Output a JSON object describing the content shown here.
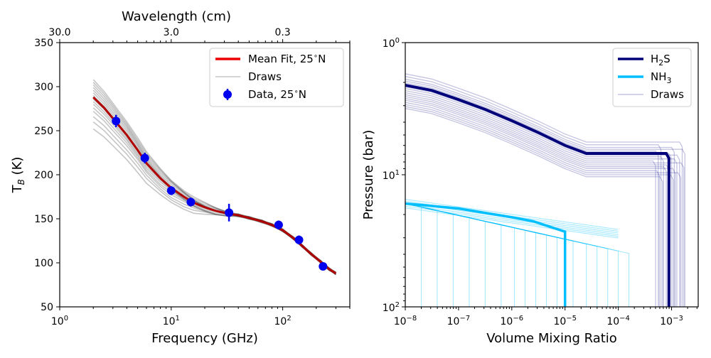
{
  "chart_data": [
    {
      "type": "line",
      "panel": "left",
      "x_scale": "log",
      "xlabel": "Frequency (GHz)",
      "ylabel_main": "T",
      "ylabel_sub": "B",
      "ylabel_unit": " (K)",
      "top_axis_label": "Wavelength (cm)",
      "xlim": [
        1,
        400
      ],
      "ylim": [
        50,
        350
      ],
      "x_tick_labels": [
        {
          "base": "10",
          "exp": "0",
          "value": 1
        },
        {
          "base": "10",
          "exp": "1",
          "value": 10
        },
        {
          "base": "10",
          "exp": "2",
          "value": 100
        }
      ],
      "y_ticks": [
        50,
        100,
        150,
        200,
        250,
        300,
        350
      ],
      "top_ticks": [
        {
          "label": "30.0",
          "freq": 1
        },
        {
          "label": "3.0",
          "freq": 10
        },
        {
          "label": "0.3",
          "freq": 100
        }
      ],
      "legend": [
        {
          "label": "Mean Fit, 25",
          "suffix": "N",
          "style": "line",
          "color": "#ee0000"
        },
        {
          "label": "Draws",
          "style": "line",
          "color": "#bbbbbb"
        },
        {
          "label": "Data, 25",
          "suffix": "N",
          "style": "marker",
          "color": "#0000ee"
        }
      ],
      "mean_fit": {
        "x": [
          2,
          2.5,
          3,
          4,
          5,
          6,
          8,
          10,
          13,
          16,
          20,
          25,
          32,
          40,
          50,
          65,
          80,
          100,
          125,
          150,
          180,
          220,
          260,
          300
        ],
        "y": [
          288,
          276,
          264,
          245,
          228,
          213,
          196,
          185,
          175,
          168,
          163,
          159,
          156,
          154,
          151,
          147,
          143,
          137,
          128,
          119,
          110,
          101,
          93,
          88
        ]
      },
      "draw_offsets": [
        -36,
        -28,
        -22,
        -16,
        -12,
        -8,
        -5,
        -2,
        2,
        5,
        8,
        11,
        14,
        17,
        20
      ],
      "data_points": [
        {
          "x": 3.2,
          "y": 261,
          "err": 7
        },
        {
          "x": 5.8,
          "y": 219,
          "err": 6
        },
        {
          "x": 10,
          "y": 182,
          "err": 5
        },
        {
          "x": 15,
          "y": 169,
          "err": 5
        },
        {
          "x": 33,
          "y": 157,
          "err": 10
        },
        {
          "x": 92,
          "y": 143,
          "err": 5
        },
        {
          "x": 140,
          "y": 126,
          "err": 5
        },
        {
          "x": 230,
          "y": 96,
          "err": 3
        }
      ]
    },
    {
      "type": "line",
      "panel": "right",
      "x_scale": "log",
      "y_scale": "log",
      "y_inverted": true,
      "xlabel": "Volume Mixing Ratio",
      "ylabel": "Pressure (bar)",
      "xlim_exp": [
        -8,
        -2.5
      ],
      "ylim": [
        1,
        100
      ],
      "x_tick_labels": [
        {
          "base": "10",
          "exp": "−8",
          "e": -8
        },
        {
          "base": "10",
          "exp": "−7",
          "e": -7
        },
        {
          "base": "10",
          "exp": "−6",
          "e": -6
        },
        {
          "base": "10",
          "exp": "−5",
          "e": -5
        },
        {
          "base": "10",
          "exp": "−4",
          "e": -4
        },
        {
          "base": "10",
          "exp": "−3",
          "e": -3
        }
      ],
      "y_tick_labels": [
        {
          "base": "10",
          "exp": "0",
          "value": 1
        },
        {
          "base": "10",
          "exp": "1",
          "value": 10
        },
        {
          "base": "10",
          "exp": "2",
          "value": 100
        }
      ],
      "legend": [
        {
          "label": "H",
          "sub": "2",
          "rest": "S",
          "style": "line",
          "color": "#00007a"
        },
        {
          "label": "NH",
          "sub": "3",
          "rest": "",
          "style": "line",
          "color": "#00bfff"
        },
        {
          "label": "Draws",
          "style": "line",
          "color": "#b8b8e0"
        }
      ],
      "h2s_mean": {
        "vmr_exp": [
          -8,
          -7.5,
          -7,
          -6.5,
          -6,
          -5.5,
          -5,
          -4.6,
          -4,
          -3.5,
          -3.1,
          -3.05,
          -3.05
        ],
        "pressure": [
          2.1,
          2.3,
          2.7,
          3.2,
          3.9,
          4.8,
          6,
          6.9,
          6.9,
          6.9,
          6.9,
          7.5,
          100
        ]
      },
      "h2s_draw_shifts": [
        {
          "dp": 0.82,
          "dx": 0.25
        },
        {
          "dp": 0.86,
          "dx": -0.15
        },
        {
          "dp": 0.9,
          "dx": 0.1
        },
        {
          "dp": 0.93,
          "dx": 0.3
        },
        {
          "dp": 0.96,
          "dx": -0.2
        },
        {
          "dp": 1.0,
          "dx": 0.05
        },
        {
          "dp": 1.03,
          "dx": 0.2
        },
        {
          "dp": 1.06,
          "dx": -0.1
        },
        {
          "dp": 1.1,
          "dx": 0.15
        },
        {
          "dp": 1.14,
          "dx": -0.25
        },
        {
          "dp": 1.18,
          "dx": 0.28
        },
        {
          "dp": 1.22,
          "dx": 0.0
        },
        {
          "dp": 1.26,
          "dx": -0.05
        },
        {
          "dp": 1.3,
          "dx": 0.12
        },
        {
          "dp": 1.35,
          "dx": -0.18
        },
        {
          "dp": 1.4,
          "dx": 0.22
        },
        {
          "dp": 1.45,
          "dx": 0.08
        },
        {
          "dp": 1.5,
          "dx": -0.12
        }
      ],
      "nh3_mean": {
        "vmr_exp": [
          -8,
          -7,
          -6,
          -5.6,
          -5,
          -5,
          -5
        ],
        "pressure": [
          16.5,
          18,
          21,
          22.5,
          27,
          30,
          100
        ]
      },
      "nh3_draw_ends": [
        -7.7,
        -7.4,
        -7.1,
        -6.8,
        -6.5,
        -6.2,
        -5.95,
        -5.75,
        -5.55,
        -5.35,
        -5.15,
        -5.0,
        -4.85,
        -4.6,
        -4.4,
        -4.2,
        -4.0,
        -3.8
      ],
      "nh3_draw_shifts": [
        0.93,
        0.96,
        0.99,
        1.02,
        1.05,
        1.08
      ]
    }
  ]
}
